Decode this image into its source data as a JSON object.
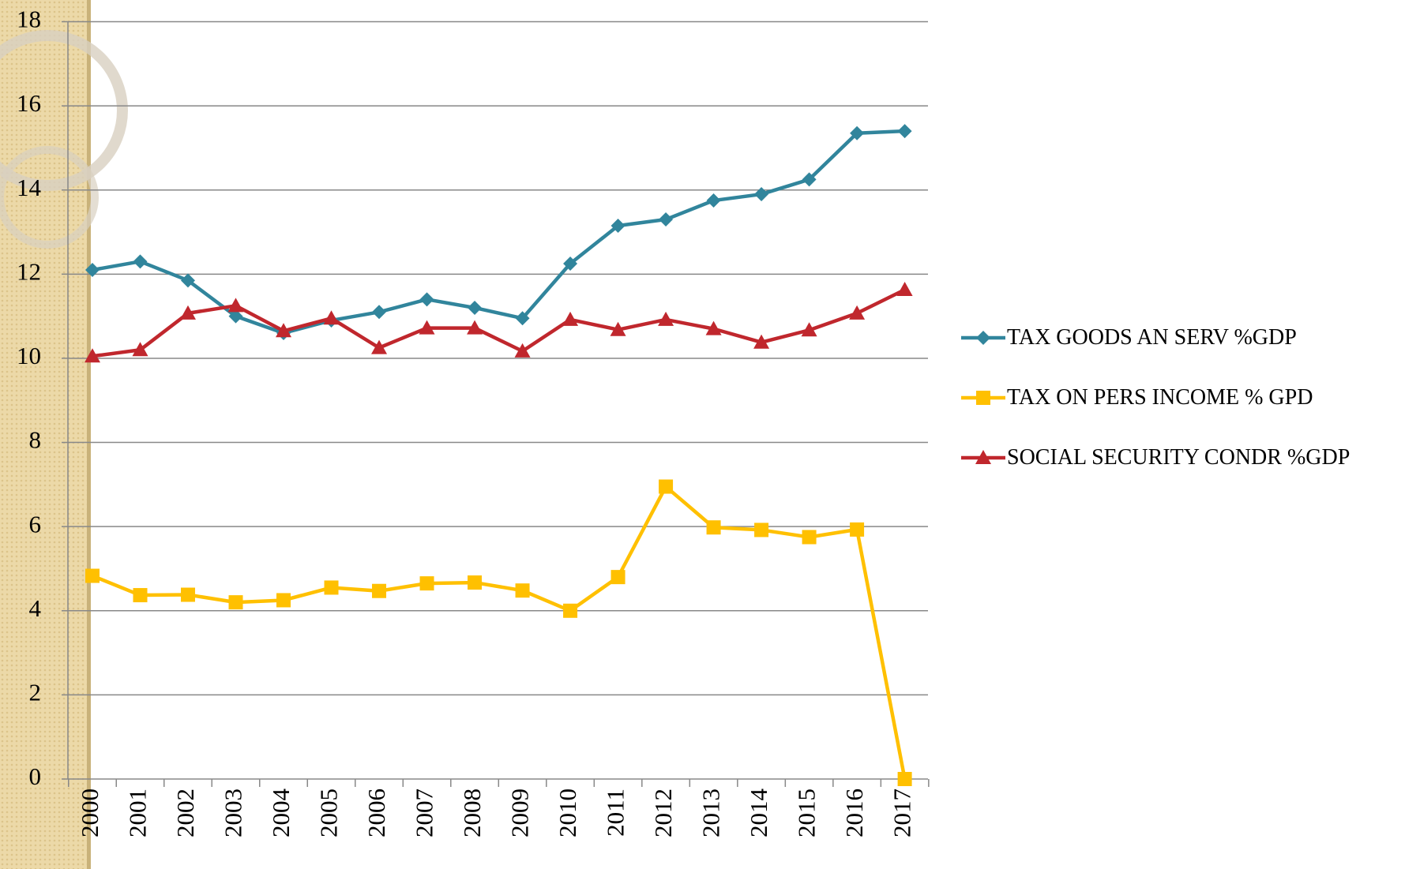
{
  "chart_data": {
    "type": "line",
    "categories": [
      "2000",
      "2001",
      "2002",
      "2003",
      "2004",
      "2005",
      "2006",
      "2007",
      "2008",
      "2009",
      "2010",
      "2011",
      "2012",
      "2013",
      "2014",
      "2015",
      "2016",
      "2017"
    ],
    "series": [
      {
        "name": "TAX GOODS AN SERV %GDP",
        "color": "#31859c",
        "marker": "diamond",
        "values": [
          12.1,
          12.3,
          11.85,
          11.0,
          10.6,
          10.9,
          11.1,
          11.4,
          11.2,
          10.95,
          12.25,
          13.15,
          13.3,
          13.75,
          13.9,
          14.25,
          15.35,
          15.4
        ]
      },
      {
        "name": "TAX ON PERS INCOME % GPD",
        "color": "#ffc000",
        "marker": "square",
        "values": [
          4.83,
          4.37,
          4.38,
          4.2,
          4.25,
          4.55,
          4.47,
          4.65,
          4.67,
          4.48,
          4.0,
          4.8,
          6.95,
          5.98,
          5.92,
          5.75,
          5.93,
          0
        ]
      },
      {
        "name": "SOCIAL SECURITY CONDR %GDP",
        "color": "#c0272d",
        "marker": "triangle",
        "values": [
          10.05,
          10.2,
          11.07,
          11.25,
          10.65,
          10.95,
          10.25,
          10.72,
          10.72,
          10.17,
          10.92,
          10.68,
          10.92,
          10.7,
          10.38,
          10.67,
          11.07,
          11.63
        ]
      }
    ],
    "ylim": [
      0,
      18
    ],
    "yticks": [
      0,
      2,
      4,
      6,
      8,
      10,
      12,
      14,
      16,
      18
    ],
    "grid": true,
    "legend": "right"
  }
}
